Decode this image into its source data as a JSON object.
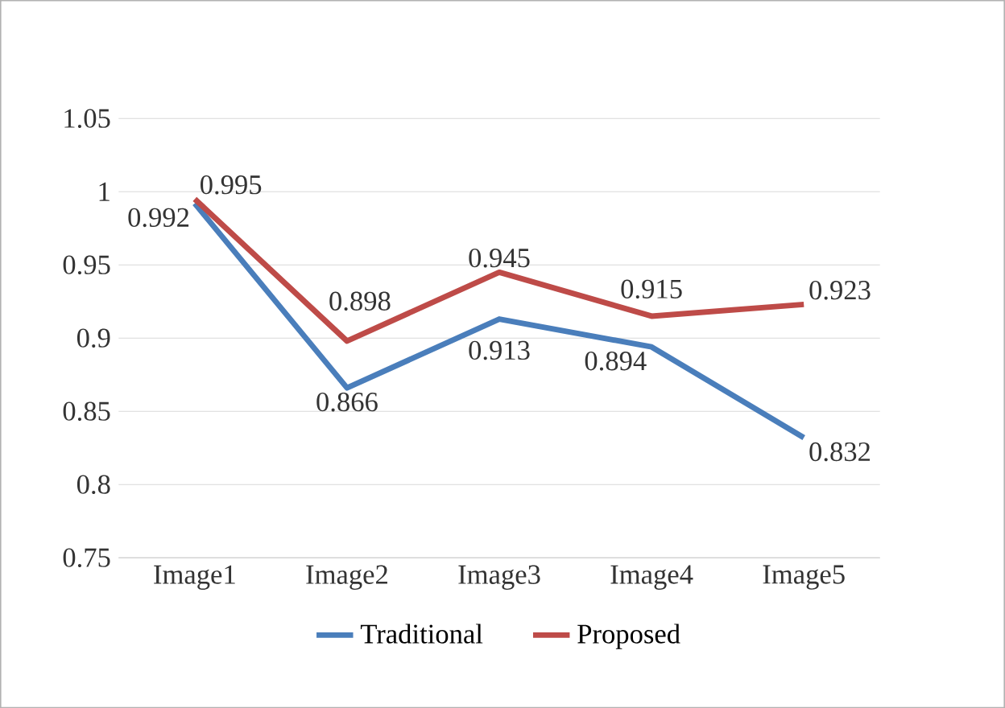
{
  "chart_data": {
    "type": "line",
    "categories": [
      "Image1",
      "Image2",
      "Image3",
      "Image4",
      "Image5"
    ],
    "series": [
      {
        "name": "Traditional",
        "color": "#4a7ebb",
        "values": [
          0.992,
          0.866,
          0.913,
          0.894,
          0.832
        ]
      },
      {
        "name": "Proposed",
        "color": "#be4b48",
        "values": [
          0.995,
          0.898,
          0.945,
          0.915,
          0.923
        ]
      }
    ],
    "ylim": [
      0.75,
      1.05
    ],
    "yticks": [
      0.75,
      0.8,
      0.85,
      0.9,
      0.95,
      1,
      1.05
    ],
    "grid": "y",
    "legend": "bottom",
    "data_labels": true,
    "marker": "none",
    "line_style": "solid"
  }
}
